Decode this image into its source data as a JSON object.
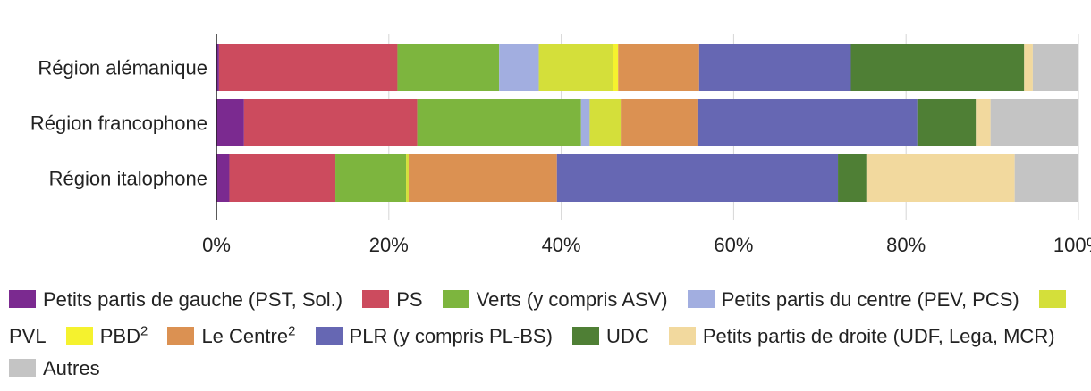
{
  "chart_data": {
    "type": "bar",
    "orientation": "horizontal",
    "stacked": true,
    "categories": [
      "Région alémanique",
      "Région francophone",
      "Région italophone"
    ],
    "series": [
      {
        "name": "Petits partis de gauche (PST, Sol.)",
        "color": "#7b2a90",
        "values": [
          0.3,
          3.2,
          1.5
        ]
      },
      {
        "name": "PS",
        "color": "#cc4b5e",
        "values": [
          20.7,
          20.1,
          12.3
        ]
      },
      {
        "name": "Verts (y compris ASV)",
        "color": "#7db53e",
        "values": [
          11.8,
          19.0,
          8.2
        ]
      },
      {
        "name": "Petits partis du centre (PEV, PCS)",
        "color": "#a2aee0",
        "values": [
          4.6,
          1.0,
          0.0
        ]
      },
      {
        "name": "PVL",
        "color": "#d4df3a",
        "values": [
          8.6,
          3.6,
          0.3
        ]
      },
      {
        "name": "PBD",
        "superscript": "2",
        "color": "#f5f22e",
        "values": [
          0.6,
          0.0,
          0.0
        ]
      },
      {
        "name": "Le Centre",
        "superscript": "2",
        "color": "#db9152",
        "values": [
          9.4,
          8.9,
          17.2
        ]
      },
      {
        "name": "PLR (y compris PL-BS)",
        "color": "#6667b3",
        "values": [
          17.6,
          25.5,
          32.6
        ]
      },
      {
        "name": "UDC",
        "color": "#4f7f35",
        "values": [
          20.1,
          6.8,
          3.3
        ]
      },
      {
        "name": "Petits partis de droite (UDF, Lega, MCR)",
        "color": "#f2d99e",
        "values": [
          1.0,
          1.7,
          17.2
        ]
      },
      {
        "name": "Autres",
        "color": "#c4c4c4",
        "values": [
          5.3,
          10.2,
          7.4
        ]
      }
    ],
    "xlim": [
      0,
      100
    ],
    "xticks": [
      0,
      20,
      40,
      60,
      80,
      100
    ],
    "xtick_labels": [
      "0%",
      "20%",
      "40%",
      "60%",
      "80%",
      "100%"
    ],
    "grid": true,
    "legend_position": "bottom",
    "title": "",
    "xlabel": "",
    "ylabel": ""
  }
}
